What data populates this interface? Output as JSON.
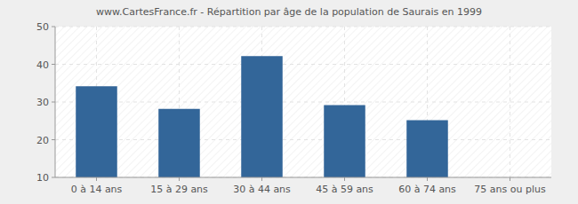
{
  "chart_data": {
    "type": "bar",
    "title": "www.CartesFrance.fr - Répartition par âge de la population de Saurais en 1999",
    "categories": [
      "0 à 14 ans",
      "15 à 29 ans",
      "30 à 44 ans",
      "45 à 59 ans",
      "60 à 74 ans",
      "75 ans ou plus"
    ],
    "values": [
      34,
      28,
      42,
      29,
      25,
      10
    ],
    "color": "#336699",
    "ylim": [
      10,
      50
    ],
    "yticks": [
      10,
      20,
      30,
      40,
      50
    ],
    "grid": true
  }
}
